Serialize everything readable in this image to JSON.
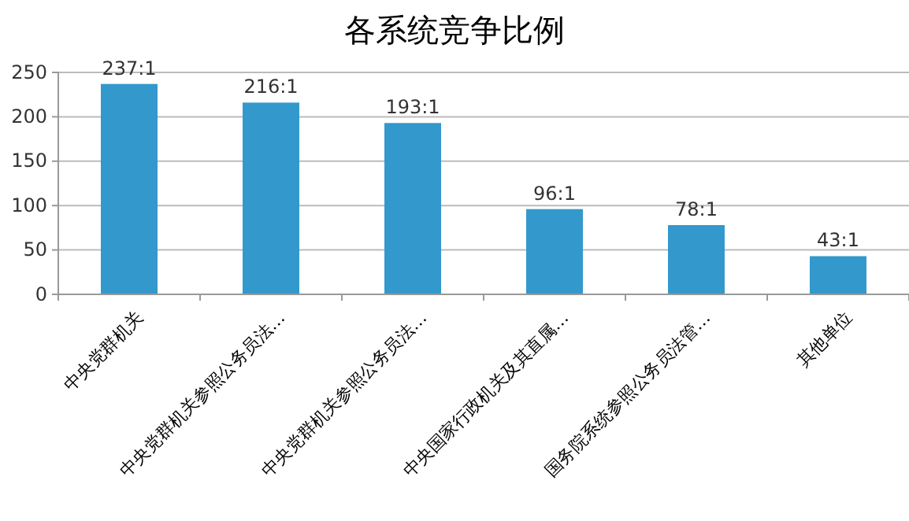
{
  "chart_data": {
    "type": "bar",
    "title": "各系统竞争比例",
    "categories": [
      "中央党群机关",
      "中央党群机关参照公务员法…",
      "中央党群机关参照公务员法…",
      "中央国家行政机关及其直属…",
      "国务院系统参照公务员法管…",
      "其他单位"
    ],
    "values": [
      237,
      216,
      193,
      96,
      78,
      43
    ],
    "value_labels": [
      "237:1",
      "216:1",
      "193:1",
      "96:1",
      "78:1",
      "43:1"
    ],
    "color": "#3399cc",
    "ylim": [
      0,
      250
    ],
    "yticks": [
      0,
      50,
      100,
      150,
      200,
      250
    ],
    "grid": "y"
  }
}
